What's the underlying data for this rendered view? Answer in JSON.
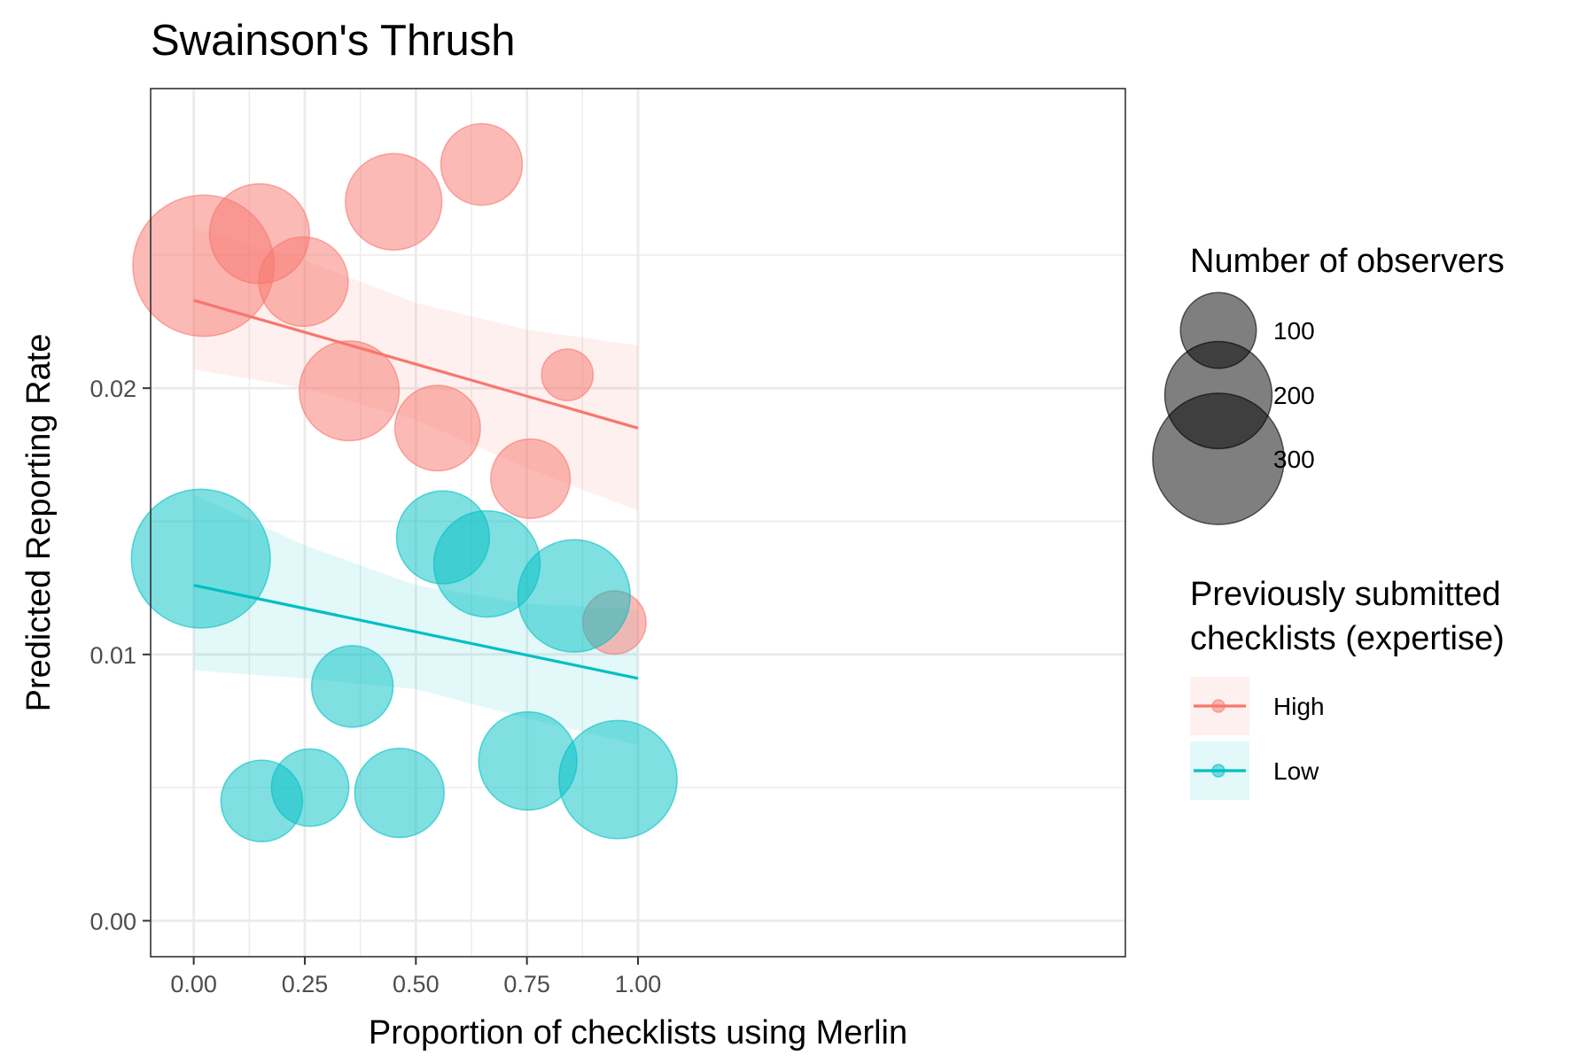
{
  "chart_data": {
    "type": "scatter",
    "title": "Swainson's Thrush",
    "xlabel": "Proportion of checklists using Merlin",
    "ylabel": "Predicted Reporting Rate",
    "xlim": [
      -0.097,
      2.097
    ],
    "ylim": [
      -0.00135,
      0.03125
    ],
    "x_ticks": [
      0.0,
      0.25,
      0.5,
      0.75,
      1.0
    ],
    "x_tick_labels": [
      "0.00",
      "0.25",
      "0.50",
      "0.75",
      "1.00"
    ],
    "y_ticks": [
      0.0,
      0.01,
      0.02
    ],
    "y_tick_labels": [
      "0.00",
      "0.01",
      "0.02"
    ],
    "grid": true,
    "legend_position": "right",
    "size_legend": {
      "title": "Number of observers",
      "entries": [
        {
          "label": "100",
          "value": 100
        },
        {
          "label": "200",
          "value": 200
        },
        {
          "label": "300",
          "value": 300
        }
      ]
    },
    "color_legend": {
      "title_lines": [
        "Previously submitted",
        "checklists (expertise)"
      ]
    },
    "series": [
      {
        "name": "High",
        "color": "#F8766D",
        "points": [
          {
            "x": 0.022,
            "y": 0.0246,
            "n": 300
          },
          {
            "x": 0.148,
            "y": 0.0258,
            "n": 150
          },
          {
            "x": 0.247,
            "y": 0.024,
            "n": 120
          },
          {
            "x": 0.35,
            "y": 0.0199,
            "n": 150
          },
          {
            "x": 0.45,
            "y": 0.027,
            "n": 140
          },
          {
            "x": 0.549,
            "y": 0.0185,
            "n": 110
          },
          {
            "x": 0.648,
            "y": 0.0284,
            "n": 100
          },
          {
            "x": 0.758,
            "y": 0.0166,
            "n": 95
          },
          {
            "x": 0.841,
            "y": 0.0205,
            "n": 40
          },
          {
            "x": 0.947,
            "y": 0.0112,
            "n": 60
          }
        ],
        "fit": {
          "x": [
            0,
            1
          ],
          "y": [
            0.0233,
            0.0185
          ]
        },
        "band": {
          "x": [
            0,
            0.25,
            0.5,
            0.75,
            1.0
          ],
          "upper": [
            0.026,
            0.0248,
            0.0232,
            0.0222,
            0.0216
          ],
          "lower": [
            0.0207,
            0.02,
            0.0188,
            0.017,
            0.0154
          ]
        }
      },
      {
        "name": "Low",
        "color": "#00BFC4",
        "points": [
          {
            "x": 0.016,
            "y": 0.0136,
            "n": 290
          },
          {
            "x": 0.153,
            "y": 0.0045,
            "n": 100
          },
          {
            "x": 0.262,
            "y": 0.005,
            "n": 90
          },
          {
            "x": 0.357,
            "y": 0.0088,
            "n": 100
          },
          {
            "x": 0.463,
            "y": 0.0048,
            "n": 120
          },
          {
            "x": 0.561,
            "y": 0.0144,
            "n": 130
          },
          {
            "x": 0.66,
            "y": 0.0134,
            "n": 170
          },
          {
            "x": 0.752,
            "y": 0.006,
            "n": 145
          },
          {
            "x": 0.856,
            "y": 0.0122,
            "n": 190
          },
          {
            "x": 0.955,
            "y": 0.0053,
            "n": 210
          }
        ],
        "fit": {
          "x": [
            0,
            1
          ],
          "y": [
            0.0126,
            0.0091
          ]
        },
        "band": {
          "x": [
            0,
            0.25,
            0.5,
            0.75,
            1.0
          ],
          "upper": [
            0.016,
            0.0141,
            0.0126,
            0.0119,
            0.0117
          ],
          "lower": [
            0.0094,
            0.0091,
            0.0087,
            0.0076,
            0.0066
          ]
        }
      }
    ]
  }
}
